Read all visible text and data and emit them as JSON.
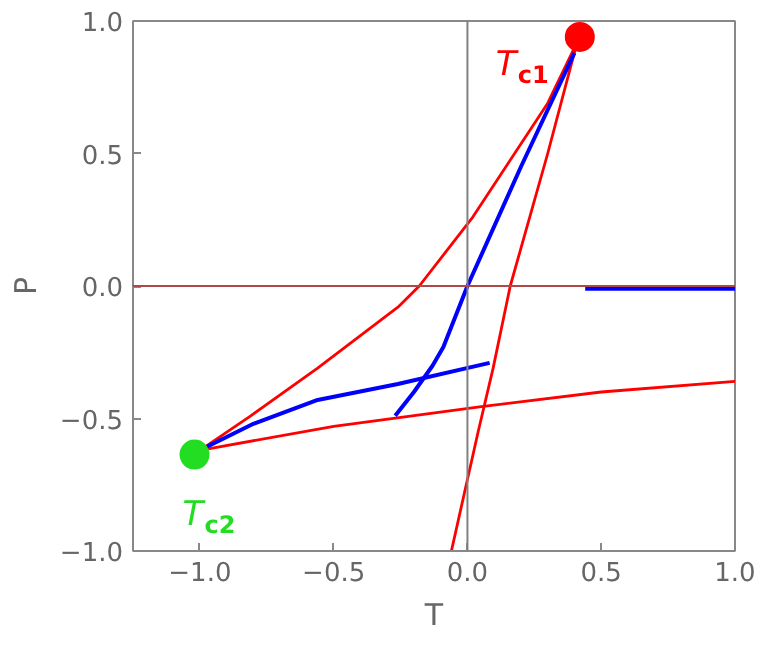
{
  "chart_data": {
    "type": "line",
    "xlabel": "T",
    "ylabel": "P",
    "xlim": [
      -1.25,
      1.0
    ],
    "ylim": [
      -1.0,
      1.0
    ],
    "xticks": [
      {
        "value": -1.0,
        "label": "−1.0"
      },
      {
        "value": -0.5,
        "label": "−0.5"
      },
      {
        "value": 0.0,
        "label": "0.0"
      },
      {
        "value": 0.5,
        "label": "0.5"
      },
      {
        "value": 1.0,
        "label": "1.0"
      }
    ],
    "yticks": [
      {
        "value": -1.0,
        "label": "−1.0"
      },
      {
        "value": -0.5,
        "label": "−0.5"
      },
      {
        "value": 0.0,
        "label": "0.0"
      },
      {
        "value": 0.5,
        "label": "0.5"
      },
      {
        "value": 1.0,
        "label": "1.0"
      }
    ],
    "grid": false,
    "ref_lines": [
      {
        "axis": "x",
        "value": 0,
        "color": "#808080"
      },
      {
        "axis": "y",
        "value": 0,
        "color": "#b04848"
      }
    ],
    "series": [
      {
        "color": "#ff0000",
        "x": [
          -1.0,
          -0.81,
          -0.56,
          -0.26,
          -0.18,
          0.02,
          0.3,
          0.41
        ],
        "values": [
          -0.62,
          -0.49,
          -0.31,
          -0.08,
          0.0,
          0.26,
          0.69,
          0.92
        ]
      },
      {
        "color": "#ff0000",
        "x": [
          0.41,
          0.3,
          0.16,
          0.096,
          0.04,
          -0.06
        ],
        "values": [
          0.92,
          0.5,
          0.0,
          -0.31,
          -0.55,
          -1.0
        ]
      },
      {
        "color": "#ff0000",
        "x": [
          -1.0,
          -0.5,
          0.045,
          0.5,
          1.0
        ],
        "values": [
          -0.62,
          -0.53,
          -0.456,
          -0.4,
          -0.36
        ]
      },
      {
        "color": "#0000ff",
        "x": [
          0.4,
          0.2,
          0.0,
          -0.09,
          -0.13,
          -0.2,
          -0.27
        ],
        "values": [
          0.88,
          0.45,
          0.0,
          -0.23,
          -0.3,
          -0.4,
          -0.49
        ]
      },
      {
        "color": "#0000ff",
        "x": [
          -1.0,
          -0.8,
          -0.56,
          -0.26,
          0.083
        ],
        "values": [
          -0.62,
          -0.52,
          -0.43,
          -0.37,
          -0.29
        ]
      },
      {
        "color": "#0000ff",
        "x": [
          0.44,
          1.0
        ],
        "values": [
          -0.01,
          -0.01
        ]
      },
      {
        "type": "scatter",
        "color": "#ff0000",
        "x": [
          0.42
        ],
        "values": [
          0.94
        ]
      },
      {
        "type": "scatter",
        "color": "#22dd22",
        "x": [
          -1.02
        ],
        "values": [
          -0.636
        ]
      }
    ],
    "annotations": [
      {
        "text": "T$_{c1}$",
        "x": 0.42,
        "y": 0.94
      },
      {
        "text": "T$_{c2}$",
        "x": -1.02,
        "y": -0.636
      }
    ]
  }
}
